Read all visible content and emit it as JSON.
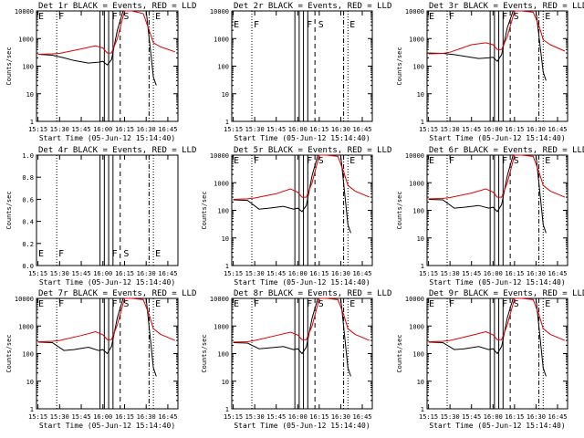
{
  "figure": {
    "xlabel_template": "Start Time (05-Jun-12 15:14:40)",
    "ylabel": "Counts/sec"
  },
  "colors": {
    "events": "#000000",
    "lld": "#e00000",
    "axis": "#000000"
  },
  "chart_data": [
    {
      "type": "line",
      "title": "Det 1r BLACK = Events, RED = LLD",
      "xlabel": "Start Time (05-Jun-12 15:14:40)",
      "ylabel": "Counts/sec",
      "ylog": true,
      "ylim": [
        1,
        10000
      ],
      "yticks": [
        "1",
        "10",
        "100",
        "1000",
        "10000"
      ],
      "xticks": [
        "15:15",
        "15:30",
        "15:45",
        "16:00",
        "16:15",
        "16:30",
        "16:45"
      ],
      "markers": [
        {
          "label": "E",
          "x": "15:14"
        },
        {
          "label": "F",
          "x": "15:28"
        },
        {
          "label": "F",
          "x": "16:05"
        },
        {
          "label": "S",
          "x": "16:13"
        },
        {
          "label": "E",
          "x": "16:35"
        }
      ],
      "series": [
        {
          "name": "Events",
          "color": "#000000",
          "x": [
            "15:15",
            "15:25",
            "15:33",
            "15:40",
            "15:50",
            "15:57",
            "16:00",
            "16:03",
            "16:06",
            "16:10",
            "16:14",
            "16:18",
            "16:25",
            "16:30",
            "16:35",
            "16:37"
          ],
          "values": [
            270,
            250,
            200,
            160,
            130,
            140,
            150,
            110,
            170,
            2000,
            10000,
            10000,
            10000,
            10000,
            40,
            20
          ]
        },
        {
          "name": "LLD",
          "color": "#e00000",
          "x": [
            "15:15",
            "15:25",
            "15:30",
            "15:45",
            "15:55",
            "16:00",
            "16:03",
            "16:06",
            "16:10",
            "16:15",
            "16:20",
            "16:28",
            "16:32",
            "16:35",
            "16:40",
            "16:50"
          ],
          "values": [
            270,
            280,
            290,
            420,
            550,
            450,
            300,
            300,
            1000,
            10000,
            10000,
            8000,
            2000,
            700,
            500,
            330
          ]
        }
      ]
    },
    {
      "type": "line",
      "title": "Det 2r BLACK = Events, RED = LLD",
      "xlabel": "Start Time (05-Jun-12 15:14:40)",
      "ylabel": "",
      "ylog": true,
      "ylim": [
        1,
        10000
      ],
      "yticks": [
        "1",
        "10",
        "100",
        "1000",
        "10000"
      ],
      "xticks": [
        "15:15",
        "15:30",
        "15:45",
        "16:00",
        "16:15",
        "16:30",
        "16:45"
      ],
      "markers": [
        {
          "label": "E",
          "x": "15:14"
        },
        {
          "label": "F",
          "x": "15:28"
        },
        {
          "label": "F",
          "x": "16:05"
        },
        {
          "label": "S",
          "x": "16:13"
        },
        {
          "label": "E",
          "x": "16:35"
        }
      ],
      "series": []
    },
    {
      "type": "line",
      "title": "Det 3r BLACK = Events, RED = LLD",
      "xlabel": "Start Time (05-Jun-12 15:14:40)",
      "ylabel": "Counts/sec",
      "ylog": true,
      "ylim": [
        1,
        10000
      ],
      "yticks": [
        "1",
        "10",
        "100",
        "1000",
        "10000"
      ],
      "xticks": [
        "15:15",
        "15:30",
        "15:45",
        "16:00",
        "16:15",
        "16:30",
        "16:45"
      ],
      "markers": [
        {
          "label": "E",
          "x": "15:14"
        },
        {
          "label": "F",
          "x": "15:28"
        },
        {
          "label": "F",
          "x": "16:05"
        },
        {
          "label": "S",
          "x": "16:13"
        },
        {
          "label": "E",
          "x": "16:35"
        }
      ],
      "series": [
        {
          "name": "Events",
          "color": "#000000",
          "x": [
            "15:15",
            "15:25",
            "15:33",
            "15:40",
            "15:50",
            "15:57",
            "16:00",
            "16:03",
            "16:06",
            "16:10",
            "16:14",
            "16:18",
            "16:25",
            "16:30",
            "16:35",
            "16:37"
          ],
          "values": [
            300,
            290,
            260,
            230,
            190,
            200,
            210,
            150,
            260,
            2500,
            10000,
            10000,
            10000,
            10000,
            60,
            30
          ]
        },
        {
          "name": "LLD",
          "color": "#e00000",
          "x": [
            "15:15",
            "15:25",
            "15:30",
            "15:45",
            "15:55",
            "16:00",
            "16:03",
            "16:06",
            "16:10",
            "16:15",
            "16:20",
            "16:28",
            "16:32",
            "16:35",
            "16:40",
            "16:50"
          ],
          "values": [
            280,
            290,
            320,
            600,
            700,
            600,
            400,
            400,
            1200,
            10000,
            10000,
            9000,
            3000,
            900,
            600,
            350
          ]
        }
      ]
    },
    {
      "type": "line",
      "title": "Det 4r BLACK = Events, RED = LLD",
      "xlabel": "Start Time (05-Jun-12 15:14:40)",
      "ylabel": "Counts/sec",
      "ylog": false,
      "ylim": [
        0,
        1
      ],
      "yticks": [
        "1.0",
        "0.8",
        "0.6",
        "0.4",
        "0.2",
        "0.0"
      ],
      "xticks": [
        "15:15",
        "15:30",
        "15:45",
        "16:00",
        "16:15",
        "16:30",
        "16:45"
      ],
      "markers": [
        {
          "label": "E",
          "x": "15:14"
        },
        {
          "label": "F",
          "x": "15:28"
        },
        {
          "label": "F",
          "x": "16:05"
        },
        {
          "label": "S",
          "x": "16:13"
        },
        {
          "label": "E",
          "x": "16:35"
        }
      ],
      "series": []
    },
    {
      "type": "line",
      "title": "Det 5r BLACK = Events, RED = LLD",
      "xlabel": "Start Time (05-Jun-12 15:14:40)",
      "ylabel": "Counts/sec",
      "ylog": true,
      "ylim": [
        1,
        10000
      ],
      "yticks": [
        "1",
        "10",
        "100",
        "1000",
        "10000"
      ],
      "xticks": [
        "15:15",
        "15:30",
        "15:45",
        "16:00",
        "16:15",
        "16:30",
        "16:45"
      ],
      "markers": [
        {
          "label": "E",
          "x": "15:14"
        },
        {
          "label": "F",
          "x": "15:28"
        },
        {
          "label": "F",
          "x": "16:05"
        },
        {
          "label": "S",
          "x": "16:13"
        },
        {
          "label": "E",
          "x": "16:35"
        }
      ],
      "series": [
        {
          "name": "Events",
          "color": "#000000",
          "x": [
            "15:15",
            "15:25",
            "15:33",
            "15:40",
            "15:50",
            "15:57",
            "16:00",
            "16:03",
            "16:06",
            "16:10",
            "16:14",
            "16:18",
            "16:25",
            "16:30",
            "16:35",
            "16:37"
          ],
          "values": [
            240,
            230,
            110,
            120,
            140,
            110,
            120,
            90,
            150,
            1800,
            10000,
            10000,
            10000,
            10000,
            30,
            15
          ]
        },
        {
          "name": "LLD",
          "color": "#e00000",
          "x": [
            "15:15",
            "15:25",
            "15:30",
            "15:45",
            "15:55",
            "16:00",
            "16:03",
            "16:06",
            "16:10",
            "16:15",
            "16:20",
            "16:28",
            "16:32",
            "16:35",
            "16:40",
            "16:50"
          ],
          "values": [
            250,
            260,
            280,
            400,
            600,
            450,
            300,
            300,
            1000,
            10000,
            10000,
            9000,
            2500,
            800,
            500,
            300
          ]
        }
      ]
    },
    {
      "type": "line",
      "title": "Det 6r BLACK = Events, RED = LLD",
      "xlabel": "Start Time (05-Jun-12 15:14:40)",
      "ylabel": "Counts/sec",
      "ylog": true,
      "ylim": [
        1,
        10000
      ],
      "yticks": [
        "1",
        "10",
        "100",
        "1000",
        "10000"
      ],
      "xticks": [
        "15:15",
        "15:30",
        "15:45",
        "16:00",
        "16:15",
        "16:30",
        "16:45"
      ],
      "markers": [
        {
          "label": "E",
          "x": "15:14"
        },
        {
          "label": "F",
          "x": "15:28"
        },
        {
          "label": "F",
          "x": "16:05"
        },
        {
          "label": "S",
          "x": "16:13"
        },
        {
          "label": "E",
          "x": "16:35"
        }
      ],
      "series": [
        {
          "name": "Events",
          "color": "#000000",
          "x": [
            "15:15",
            "15:25",
            "15:33",
            "15:40",
            "15:50",
            "15:57",
            "16:00",
            "16:03",
            "16:06",
            "16:10",
            "16:14",
            "16:18",
            "16:25",
            "16:30",
            "16:35",
            "16:37"
          ],
          "values": [
            250,
            240,
            120,
            130,
            150,
            120,
            130,
            90,
            160,
            1800,
            10000,
            10000,
            10000,
            10000,
            30,
            15
          ]
        },
        {
          "name": "LLD",
          "color": "#e00000",
          "x": [
            "15:15",
            "15:25",
            "15:30",
            "15:45",
            "15:55",
            "16:00",
            "16:03",
            "16:06",
            "16:10",
            "16:15",
            "16:20",
            "16:28",
            "16:32",
            "16:35",
            "16:40",
            "16:50"
          ],
          "values": [
            260,
            270,
            290,
            420,
            600,
            460,
            300,
            300,
            1000,
            10000,
            10000,
            9000,
            2500,
            800,
            500,
            300
          ]
        }
      ]
    },
    {
      "type": "line",
      "title": "Det 7r BLACK = Events, RED = LLD",
      "xlabel": "Start Time (05-Jun-12 15:14:40)",
      "ylabel": "Counts/sec",
      "ylog": true,
      "ylim": [
        1,
        10000
      ],
      "yticks": [
        "1",
        "10",
        "100",
        "1000",
        "10000"
      ],
      "xticks": [
        "15:15",
        "15:30",
        "15:45",
        "16:00",
        "16:15",
        "16:30",
        "16:45"
      ],
      "markers": [
        {
          "label": "E",
          "x": "15:14"
        },
        {
          "label": "F",
          "x": "15:28"
        },
        {
          "label": "F",
          "x": "16:05"
        },
        {
          "label": "S",
          "x": "16:13"
        },
        {
          "label": "E",
          "x": "16:35"
        }
      ],
      "series": [
        {
          "name": "Events",
          "color": "#000000",
          "x": [
            "15:15",
            "15:25",
            "15:33",
            "15:40",
            "15:50",
            "15:57",
            "16:00",
            "16:03",
            "16:06",
            "16:10",
            "16:14",
            "16:18",
            "16:25",
            "16:30",
            "16:35",
            "16:37"
          ],
          "values": [
            260,
            250,
            130,
            140,
            170,
            130,
            140,
            100,
            180,
            2000,
            10000,
            10000,
            10000,
            10000,
            30,
            15
          ]
        },
        {
          "name": "LLD",
          "color": "#e00000",
          "x": [
            "15:15",
            "15:25",
            "15:30",
            "15:45",
            "15:55",
            "16:00",
            "16:03",
            "16:06",
            "16:10",
            "16:15",
            "16:20",
            "16:28",
            "16:32",
            "16:35",
            "16:40",
            "16:50"
          ],
          "values": [
            270,
            280,
            300,
            450,
            620,
            480,
            320,
            320,
            1100,
            10000,
            10000,
            9000,
            2600,
            800,
            500,
            300
          ]
        }
      ]
    },
    {
      "type": "line",
      "title": "Det 8r BLACK = Events, RED = LLD",
      "xlabel": "Start Time (05-Jun-12 15:14:40)",
      "ylabel": "Counts/sec",
      "ylog": true,
      "ylim": [
        1,
        10000
      ],
      "yticks": [
        "1",
        "10",
        "100",
        "1000",
        "10000"
      ],
      "xticks": [
        "15:15",
        "15:30",
        "15:45",
        "16:00",
        "16:15",
        "16:30",
        "16:45"
      ],
      "markers": [
        {
          "label": "E",
          "x": "15:14"
        },
        {
          "label": "F",
          "x": "15:28"
        },
        {
          "label": "F",
          "x": "16:05"
        },
        {
          "label": "S",
          "x": "16:13"
        },
        {
          "label": "E",
          "x": "16:35"
        }
      ],
      "series": [
        {
          "name": "Events",
          "color": "#000000",
          "x": [
            "15:15",
            "15:25",
            "15:33",
            "15:40",
            "15:50",
            "15:57",
            "16:00",
            "16:03",
            "16:06",
            "16:10",
            "16:14",
            "16:18",
            "16:25",
            "16:30",
            "16:35",
            "16:37"
          ],
          "values": [
            250,
            240,
            150,
            160,
            180,
            140,
            150,
            100,
            170,
            1900,
            10000,
            10000,
            10000,
            10000,
            30,
            15
          ]
        },
        {
          "name": "LLD",
          "color": "#e00000",
          "x": [
            "15:15",
            "15:25",
            "15:30",
            "15:45",
            "15:55",
            "16:00",
            "16:03",
            "16:06",
            "16:10",
            "16:15",
            "16:20",
            "16:28",
            "16:32",
            "16:35",
            "16:40",
            "16:50"
          ],
          "values": [
            260,
            270,
            300,
            450,
            600,
            470,
            320,
            320,
            1000,
            10000,
            10000,
            9000,
            2600,
            800,
            500,
            300
          ]
        }
      ]
    },
    {
      "type": "line",
      "title": "Det 9r BLACK = Events, RED = LLD",
      "xlabel": "Start Time (05-Jun-12 15:14:40)",
      "ylabel": "Counts/sec",
      "ylog": true,
      "ylim": [
        1,
        10000
      ],
      "yticks": [
        "1",
        "10",
        "100",
        "1000",
        "10000"
      ],
      "xticks": [
        "15:15",
        "15:30",
        "15:45",
        "16:00",
        "16:15",
        "16:30",
        "16:45"
      ],
      "markers": [
        {
          "label": "E",
          "x": "15:14"
        },
        {
          "label": "F",
          "x": "15:28"
        },
        {
          "label": "F",
          "x": "16:05"
        },
        {
          "label": "S",
          "x": "16:13"
        },
        {
          "label": "E",
          "x": "16:35"
        }
      ],
      "series": [
        {
          "name": "Events",
          "color": "#000000",
          "x": [
            "15:15",
            "15:25",
            "15:33",
            "15:40",
            "15:50",
            "15:57",
            "16:00",
            "16:03",
            "16:06",
            "16:10",
            "16:14",
            "16:18",
            "16:25",
            "16:30",
            "16:35",
            "16:37"
          ],
          "values": [
            260,
            250,
            140,
            150,
            180,
            140,
            150,
            100,
            180,
            2000,
            10000,
            10000,
            10000,
            10000,
            30,
            15
          ]
        },
        {
          "name": "LLD",
          "color": "#e00000",
          "x": [
            "15:15",
            "15:25",
            "15:30",
            "15:45",
            "15:55",
            "16:00",
            "16:03",
            "16:06",
            "16:10",
            "16:15",
            "16:20",
            "16:28",
            "16:32",
            "16:35",
            "16:40",
            "16:50"
          ],
          "values": [
            270,
            280,
            300,
            460,
            620,
            480,
            320,
            320,
            1100,
            10000,
            10000,
            9000,
            2600,
            800,
            500,
            300
          ]
        }
      ]
    }
  ]
}
